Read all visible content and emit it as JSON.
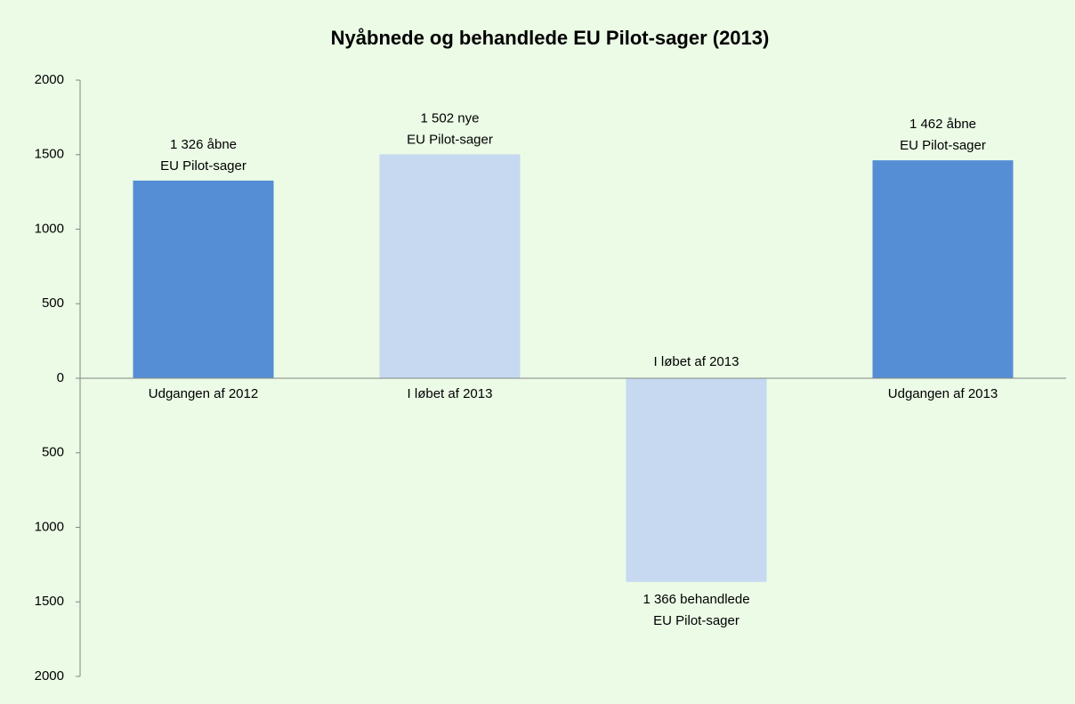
{
  "chart_data": {
    "type": "bar",
    "title": "Nyåbnede og behandlede EU Pilot-sager (2013)",
    "categories": [
      "Udgangen af 2012",
      "I løbet af 2013",
      "I løbet af 2013",
      "Udgangen af 2013"
    ],
    "values": [
      1326,
      1502,
      -1366,
      1462
    ],
    "value_labels": [
      [
        "1 326 åbne",
        "EU Pilot-sager"
      ],
      [
        "1 502 nye",
        "EU Pilot-sager"
      ],
      [
        "1 366 behandlede",
        "EU Pilot-sager"
      ],
      [
        "1 462 åbne",
        "EU Pilot-sager"
      ]
    ],
    "colors": [
      "#558ed5",
      "#c6d9f1",
      "#c6d9f1",
      "#558ed5"
    ],
    "ylim": [
      -2000,
      2000
    ],
    "yticks": [
      {
        "value": -2000,
        "label": "2000"
      },
      {
        "value": -1500,
        "label": "1500"
      },
      {
        "value": -1000,
        "label": "1000"
      },
      {
        "value": -500,
        "label": "500"
      },
      0,
      500,
      1000,
      1500,
      2000
    ],
    "grid": false
  }
}
